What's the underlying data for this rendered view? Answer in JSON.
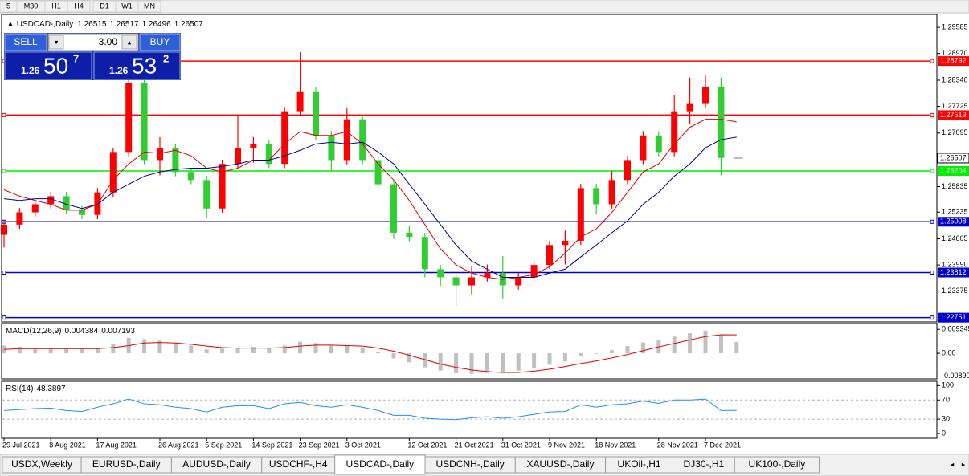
{
  "toolbar": {
    "timeframes": [
      "5",
      "M30",
      "H1",
      "H4",
      "D1",
      "W1",
      "MN"
    ]
  },
  "trade_panel": {
    "sell": "SELL",
    "lot": "3.00",
    "buy": "BUY",
    "sell_price": {
      "prefix": "1.26",
      "main": "50",
      "sup": "7"
    },
    "buy_price": {
      "prefix": "1.26",
      "main": "53",
      "sup": "2"
    }
  },
  "chart_data": {
    "type": "candlestick",
    "symbol": "USDCAD-,Daily",
    "up_color": "#ff0000",
    "down_color": "#32cd32",
    "categories": [
      "29 Jul 2021",
      null,
      null,
      "8 Aug 2021",
      null,
      null,
      "17 Aug 2021",
      null,
      null,
      null,
      "26 Aug 2021",
      null,
      null,
      "5 Sep 2021",
      null,
      null,
      "14 Sep 2021",
      null,
      null,
      "23 Sep 2021",
      null,
      null,
      "3 Oct 2021",
      null,
      null,
      null,
      "12 Oct 2021",
      null,
      null,
      "21 Oct 2021",
      null,
      null,
      "31 Oct 2021",
      null,
      null,
      "9 Nov 2021",
      null,
      null,
      "18 Nov 2021",
      null,
      null,
      null,
      "28 Nov 2021",
      null,
      null,
      "7 Dec 2021",
      null,
      null
    ],
    "candles": [
      [
        1.247,
        1.2504,
        1.244,
        1.2494
      ],
      [
        1.2494,
        1.2533,
        1.2484,
        1.2523
      ],
      [
        1.2523,
        1.2552,
        1.2513,
        1.2542
      ],
      [
        1.2542,
        1.2571,
        1.2532,
        1.2561
      ],
      [
        1.2561,
        1.2571,
        1.2518,
        1.2528
      ],
      [
        1.2528,
        1.2538,
        1.2507,
        1.2517
      ],
      [
        1.2517,
        1.258,
        1.2507,
        1.257
      ],
      [
        1.257,
        1.2675,
        1.256,
        1.2665
      ],
      [
        1.2665,
        1.2837,
        1.2655,
        1.2827
      ],
      [
        1.2827,
        1.2837,
        1.2636,
        1.2646
      ],
      [
        1.2646,
        1.27,
        1.261,
        1.2675
      ],
      [
        1.2675,
        1.2685,
        1.2608,
        1.2618
      ],
      [
        1.2618,
        1.2628,
        1.2589,
        1.2599
      ],
      [
        1.2599,
        1.2609,
        1.251,
        1.2532
      ],
      [
        1.2532,
        1.2647,
        1.2522,
        1.2637
      ],
      [
        1.2637,
        1.275,
        1.2627,
        1.2675
      ],
      [
        1.2675,
        1.27,
        1.264,
        1.2684
      ],
      [
        1.2684,
        1.2694,
        1.2627,
        1.2637
      ],
      [
        1.2637,
        1.2771,
        1.2627,
        1.2761
      ],
      [
        1.2761,
        1.29,
        1.2751,
        1.2808
      ],
      [
        1.2808,
        1.2818,
        1.2694,
        1.2704
      ],
      [
        1.2704,
        1.2714,
        1.262,
        1.2646
      ],
      [
        1.2646,
        1.277,
        1.2636,
        1.2742
      ],
      [
        1.2742,
        1.2752,
        1.2636,
        1.2646
      ],
      [
        1.2646,
        1.2656,
        1.2579,
        1.2589
      ],
      [
        1.2589,
        1.2599,
        1.246,
        1.2475
      ],
      [
        1.2475,
        1.249,
        1.2455,
        1.2465
      ],
      [
        1.2465,
        1.2475,
        1.237,
        1.2389
      ],
      [
        1.2389,
        1.2399,
        1.235,
        1.237
      ],
      [
        1.237,
        1.238,
        1.23,
        1.2351
      ],
      [
        1.2351,
        1.2395,
        1.233,
        1.237
      ],
      [
        1.237,
        1.24,
        1.236,
        1.238
      ],
      [
        1.238,
        1.242,
        1.232,
        1.2351
      ],
      [
        1.2351,
        1.238,
        1.2341,
        1.237
      ],
      [
        1.237,
        1.2409,
        1.236,
        1.2399
      ],
      [
        1.2399,
        1.2456,
        1.2389,
        1.2446
      ],
      [
        1.2446,
        1.248,
        1.24,
        1.2456
      ],
      [
        1.2456,
        1.259,
        1.2446,
        1.258
      ],
      [
        1.258,
        1.259,
        1.252,
        1.2542
      ],
      [
        1.2542,
        1.262,
        1.2532,
        1.2599
      ],
      [
        1.2599,
        1.2656,
        1.2589,
        1.2646
      ],
      [
        1.2646,
        1.2714,
        1.2636,
        1.2704
      ],
      [
        1.2704,
        1.2714,
        1.2655,
        1.2665
      ],
      [
        1.2665,
        1.28,
        1.2655,
        1.2761
      ],
      [
        1.2761,
        1.284,
        1.273,
        1.278
      ],
      [
        1.278,
        1.2845,
        1.277,
        1.2818
      ],
      [
        1.2818,
        1.284,
        1.261,
        1.2651
      ],
      [
        1.26515,
        1.26517,
        1.26496,
        1.26507
      ]
    ],
    "ylim": [
      1.2265,
      1.2989
    ],
    "yticks": [
      1.29585,
      {
        "value": 1.2897,
        "label": "1.28970"
      },
      {
        "value": 1.2834,
        "label": "1.28340"
      },
      1.27725,
      1.27095,
      1.25835,
      1.25235,
      1.24605,
      {
        "value": 1.2399,
        "label": "1.23990"
      },
      1.23375
    ],
    "levels": [
      {
        "value": 1.28792,
        "color": "#ff0000"
      },
      {
        "value": 1.27519,
        "color": "#ff0000"
      },
      {
        "value": 1.26204,
        "color": "#00ee00"
      },
      {
        "value": 1.25008,
        "color": "#0000cd"
      },
      {
        "value": 1.23812,
        "color": "#0000cd"
      },
      {
        "value": 1.22751,
        "color": "#0000cd"
      }
    ],
    "moving_averages": [
      {
        "color": "#e00000",
        "values": [
          1.2576,
          1.2561,
          1.2551,
          1.2542,
          1.2528,
          1.2528,
          1.2542,
          1.2599,
          1.2637,
          1.2665,
          1.2662,
          1.2669,
          1.2656,
          1.2627,
          1.2618,
          1.2627,
          1.2646,
          1.2646,
          1.2684,
          1.2713,
          1.2704,
          1.2704,
          1.2713,
          1.2684,
          1.2637,
          1.2599,
          1.2551,
          1.2494,
          1.2437,
          1.2399,
          1.238,
          1.237,
          1.2365,
          1.237,
          1.2376,
          1.2395,
          1.2427,
          1.2465,
          1.2484,
          1.2523,
          1.257,
          1.2618,
          1.2637,
          1.2684,
          1.2723,
          1.2742,
          1.2742,
          1.2736
        ]
      },
      {
        "color": "#00008b",
        "values": [
          1.2555,
          1.2551,
          1.2555,
          1.2555,
          1.2542,
          1.2532,
          1.2542,
          1.257,
          1.2589,
          1.2608,
          1.2618,
          1.2624,
          1.2627,
          1.2627,
          1.2631,
          1.2637,
          1.2646,
          1.2646,
          1.2656,
          1.2669,
          1.2684,
          1.2688,
          1.2684,
          1.2688,
          1.2665,
          1.2637,
          1.2589,
          1.2542,
          1.2494,
          1.2446,
          1.2408,
          1.2389,
          1.237,
          1.237,
          1.237,
          1.238,
          1.2389,
          1.2418,
          1.2446,
          1.2475,
          1.2503,
          1.2542,
          1.257,
          1.2608,
          1.2637,
          1.2675,
          1.2694,
          1.27
        ]
      }
    ],
    "macd": {
      "name": "MACD(12,26,9)",
      "histogram_color": "#c0c0c0",
      "signal_color": "#e00000",
      "histogram": [
        0.003,
        0.0025,
        0.0022,
        0.0022,
        0.002,
        0.0018,
        0.0022,
        0.0035,
        0.006,
        0.0055,
        0.005,
        0.004,
        0.003,
        0.0015,
        0.0018,
        0.0022,
        0.0025,
        0.0022,
        0.003,
        0.0045,
        0.004,
        0.003,
        0.003,
        0.002,
        0.0005,
        -0.002,
        -0.0035,
        -0.0055,
        -0.0068,
        -0.0078,
        -0.008,
        -0.0078,
        -0.0075,
        -0.0068,
        -0.0058,
        -0.0045,
        -0.0032,
        -0.0012,
        -0.0002,
        0.0012,
        0.0028,
        0.0042,
        0.005,
        0.0065,
        0.0078,
        0.0088,
        0.007,
        0.004384
      ],
      "signal": [
        0.0015,
        0.0018,
        0.0018,
        0.0018,
        0.0018,
        0.0018,
        0.0018,
        0.0022,
        0.003,
        0.004,
        0.0042,
        0.004,
        0.0035,
        0.0028,
        0.0022,
        0.002,
        0.002,
        0.002,
        0.0022,
        0.0028,
        0.0032,
        0.0032,
        0.003,
        0.0028,
        0.002,
        0.0008,
        -0.0008,
        -0.0025,
        -0.0042,
        -0.0055,
        -0.0065,
        -0.0072,
        -0.0075,
        -0.0075,
        -0.007,
        -0.0062,
        -0.0052,
        -0.004,
        -0.003,
        -0.0018,
        -0.0005,
        0.001,
        0.0025,
        0.0038,
        0.0052,
        0.0065,
        0.0072,
        0.007193
      ],
      "ylim": [
        -0.01,
        0.0116
      ],
      "yticks": [
        0.009345,
        {
          "value": 0,
          "label": "0.00"
        },
        {
          "value": -0.0089,
          "label": "-0.00890"
        }
      ]
    },
    "rsi": {
      "name": "RSI(14)",
      "color": "#1e90ff",
      "values": [
        48,
        50,
        52,
        53,
        48,
        46,
        55,
        62,
        72,
        62,
        60,
        55,
        52,
        45,
        55,
        58,
        58,
        52,
        62,
        65,
        58,
        55,
        60,
        55,
        48,
        38,
        38,
        32,
        30,
        29,
        33,
        35,
        32,
        35,
        40,
        45,
        46,
        60,
        55,
        60,
        62,
        68,
        63,
        70,
        70,
        72,
        48,
        48.3897
      ],
      "ylim": [
        -10,
        109
      ],
      "yticks": [
        100,
        70,
        30,
        0
      ],
      "levels": [
        70,
        30
      ]
    }
  },
  "tabs": [
    "USDX,Weekly",
    "EURUSD-,Daily",
    "AUDUSD-,Daily",
    "USDCHF-,H4",
    "USDCAD-,Daily",
    "USDCNH-,Daily",
    "XAUUSD-,Daily",
    "UKOil-,H1",
    "DJ30-,H1",
    "UK100-,Daily"
  ],
  "active_tab": 4
}
